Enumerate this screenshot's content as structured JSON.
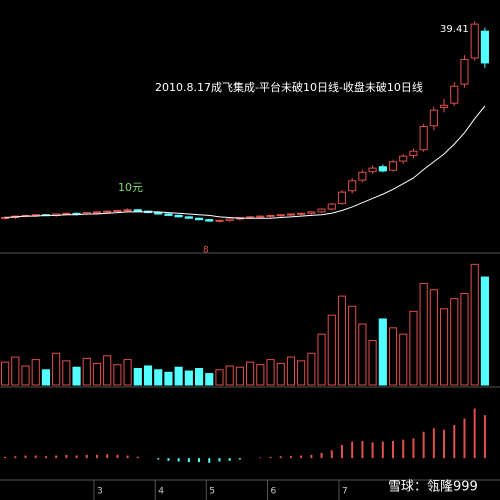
{
  "chart_data": {
    "type": "candlestick",
    "title": "2010.8.17成飞集成-平台未破10日线-收盘未破10日线",
    "annotations": [
      "10元",
      "8"
    ],
    "watermark": "雪球：瓴隆999",
    "categories": [
      null,
      null,
      null,
      null,
      null,
      null,
      null,
      null,
      null,
      "3",
      null,
      null,
      null,
      null,
      null,
      "4",
      null,
      null,
      null,
      null,
      "5",
      null,
      null,
      null,
      null,
      null,
      "6",
      null,
      null,
      null,
      null,
      null,
      null,
      "7",
      null,
      null,
      null,
      null,
      null,
      null,
      null,
      null,
      null,
      null,
      null,
      null,
      null,
      null
    ],
    "open": [
      11.5,
      11.6,
      11.8,
      11.9,
      12.0,
      11.9,
      12.1,
      12.2,
      12.1,
      12.3,
      12.4,
      12.5,
      12.6,
      12.7,
      12.5,
      12.3,
      12.1,
      11.9,
      11.7,
      11.5,
      11.3,
      11.1,
      11.2,
      11.4,
      11.6,
      11.7,
      11.8,
      11.9,
      12.0,
      12.1,
      12.2,
      12.4,
      12.8,
      13.6,
      15.4,
      16.9,
      18.1,
      18.8,
      18.3,
      19.6,
      20.4,
      21.2,
      24.6,
      27.2,
      27.8,
      30.5,
      34.2,
      38.0
    ],
    "high": [
      11.8,
      11.9,
      12.0,
      12.1,
      12.1,
      12.2,
      12.3,
      12.3,
      12.4,
      12.5,
      12.6,
      12.7,
      12.9,
      12.8,
      12.6,
      12.4,
      12.2,
      12.0,
      11.8,
      11.6,
      11.4,
      11.3,
      11.5,
      11.7,
      11.8,
      11.9,
      12.0,
      12.1,
      12.2,
      12.3,
      12.5,
      12.9,
      13.7,
      15.5,
      17.2,
      18.4,
      19.0,
      19.1,
      19.8,
      20.6,
      21.4,
      24.9,
      27.3,
      28.4,
      30.8,
      34.6,
      39.41,
      38.5
    ],
    "low": [
      11.3,
      11.4,
      11.6,
      11.7,
      11.8,
      11.7,
      11.9,
      11.9,
      11.9,
      12.1,
      12.2,
      12.3,
      12.4,
      12.4,
      12.2,
      12.0,
      11.8,
      11.6,
      11.4,
      11.2,
      11.0,
      10.9,
      11.0,
      11.2,
      11.4,
      11.5,
      11.6,
      11.7,
      11.8,
      11.9,
      12.0,
      12.2,
      12.6,
      13.4,
      15.0,
      16.6,
      17.8,
      18.0,
      18.1,
      19.2,
      20.0,
      20.9,
      24.0,
      26.5,
      27.4,
      30.0,
      33.8,
      32.8
    ],
    "close": [
      11.6,
      11.8,
      11.9,
      12.0,
      11.9,
      12.1,
      12.2,
      12.1,
      12.3,
      12.4,
      12.5,
      12.6,
      12.7,
      12.5,
      12.3,
      12.1,
      11.9,
      11.7,
      11.5,
      11.3,
      11.1,
      11.2,
      11.4,
      11.6,
      11.7,
      11.8,
      11.9,
      12.0,
      12.1,
      12.2,
      12.4,
      12.8,
      13.5,
      15.2,
      16.8,
      18.0,
      18.6,
      18.2,
      19.5,
      20.3,
      21.0,
      24.5,
      26.8,
      27.5,
      30.2,
      34.0,
      39.0,
      33.5
    ],
    "ma": [
      11.6,
      11.7,
      11.8,
      11.8,
      11.9,
      11.9,
      12.0,
      12.0,
      12.1,
      12.1,
      12.2,
      12.3,
      12.4,
      12.4,
      12.4,
      12.4,
      12.3,
      12.2,
      12.1,
      12.0,
      11.9,
      11.7,
      11.6,
      11.5,
      11.5,
      11.5,
      11.5,
      11.6,
      11.7,
      11.8,
      11.9,
      12.0,
      12.2,
      12.6,
      13.1,
      13.7,
      14.3,
      14.9,
      15.6,
      16.4,
      17.2,
      18.4,
      19.5,
      20.6,
      22.0,
      23.6,
      25.6,
      27.4
    ],
    "ma_color": "#ffffff",
    "up_color": "#e0504c",
    "down_color": "#54ffff",
    "ylim": [
      7,
      41
    ],
    "volume": [
      18,
      22,
      15,
      20,
      12,
      25,
      19,
      14,
      21,
      17,
      23,
      16,
      20,
      13,
      15,
      12,
      10,
      14,
      11,
      13,
      9,
      12,
      15,
      14,
      18,
      16,
      20,
      17,
      22,
      19,
      25,
      40,
      55,
      70,
      62,
      48,
      35,
      52,
      45,
      40,
      58,
      80,
      75,
      60,
      68,
      72,
      95,
      85
    ],
    "volume_ylim": [
      0,
      100
    ],
    "macd": [
      0.2,
      0.3,
      0.4,
      0.4,
      0.3,
      0.4,
      0.5,
      0.4,
      0.5,
      0.5,
      0.6,
      0.5,
      0.4,
      0.2,
      0,
      -0.2,
      -0.4,
      -0.5,
      -0.6,
      -0.6,
      -0.7,
      -0.5,
      -0.4,
      -0.2,
      0,
      0.1,
      0.2,
      0.3,
      0.3,
      0.4,
      0.5,
      0.8,
      1.2,
      2.0,
      2.5,
      2.6,
      2.4,
      2.5,
      2.6,
      2.8,
      3.0,
      4.0,
      4.5,
      4.3,
      5.0,
      6.0,
      7.5,
      6.5
    ],
    "macd_ylim": [
      -3,
      10
    ]
  }
}
